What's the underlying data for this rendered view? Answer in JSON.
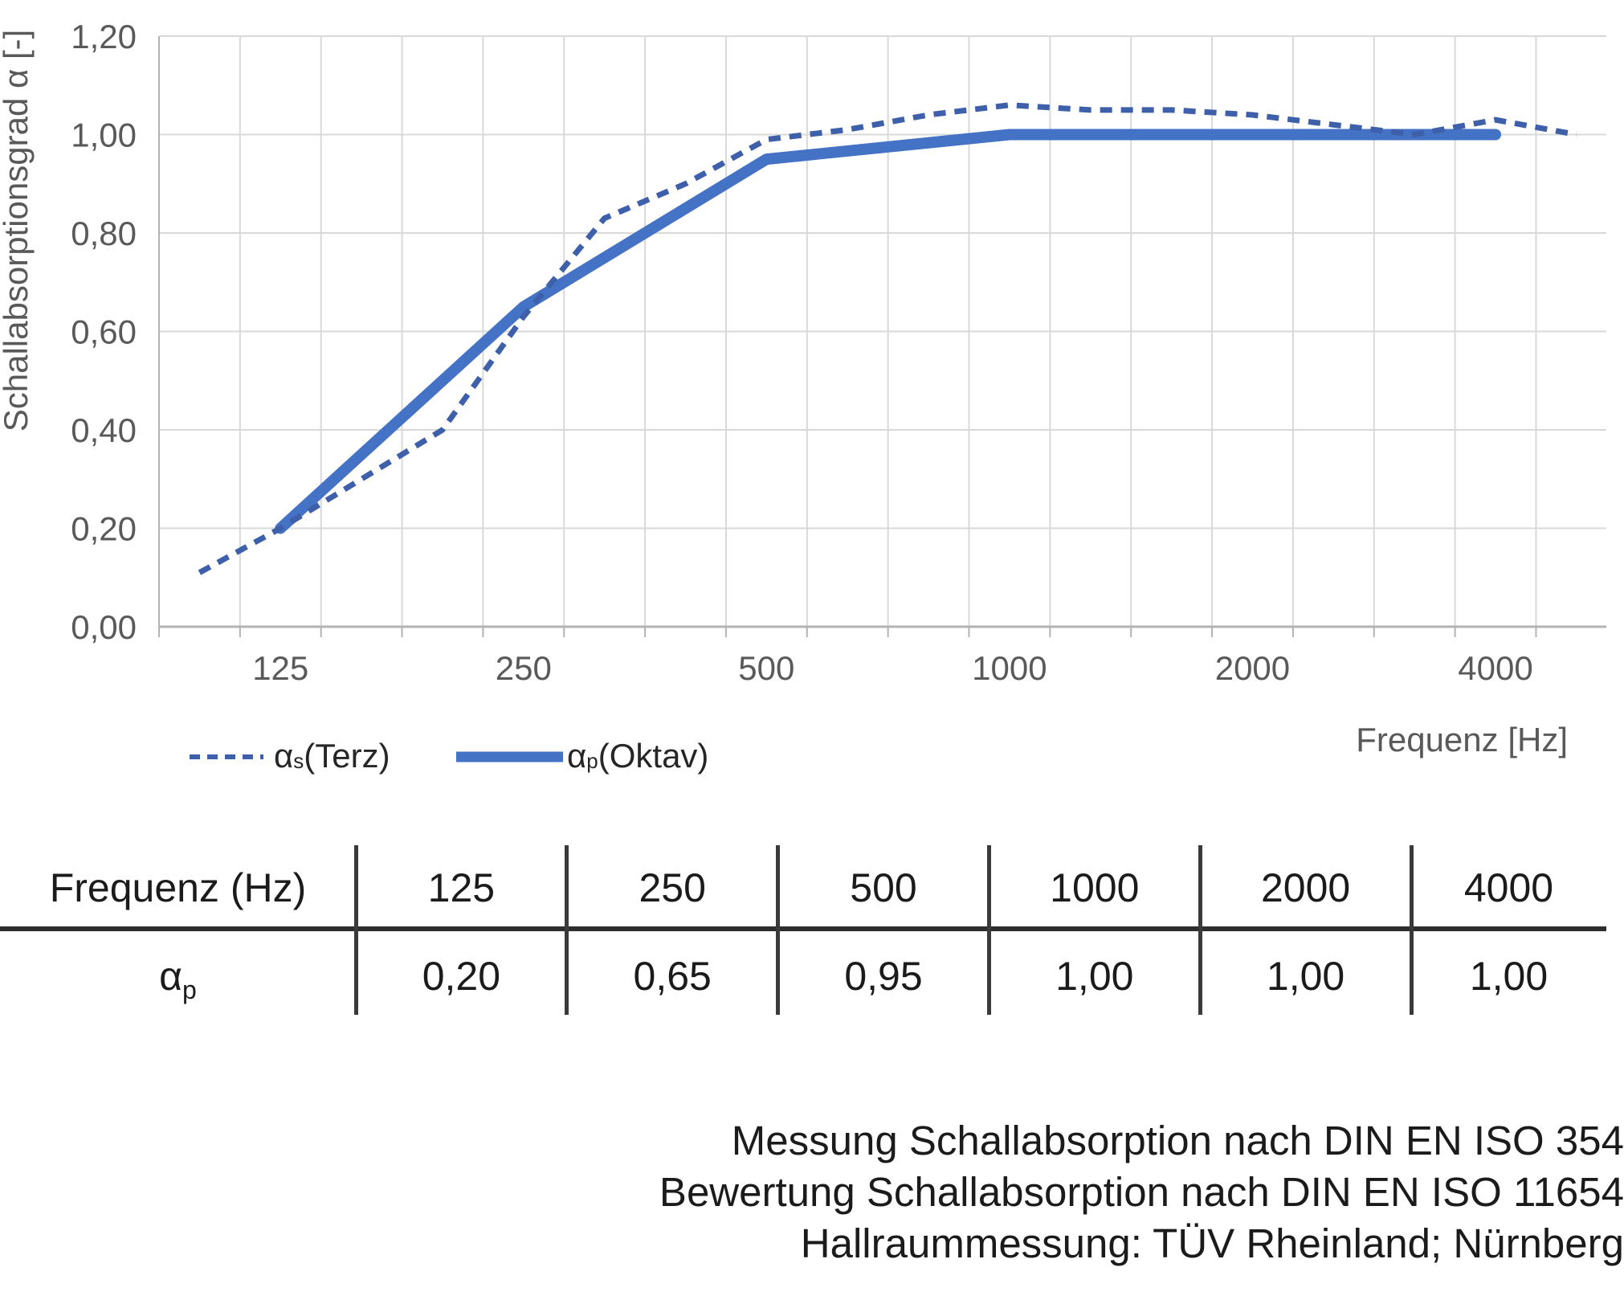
{
  "chart_data": {
    "type": "line",
    "title": "",
    "ylabel": "Schallabsorptionsgrad α [-]",
    "xlabel": "Frequenz [Hz]",
    "ylim": [
      0,
      1.2
    ],
    "grid": true,
    "bands": [
      100,
      125,
      160,
      200,
      250,
      315,
      400,
      500,
      630,
      800,
      1000,
      1250,
      1600,
      2000,
      2500,
      3150,
      4000,
      5000
    ],
    "x_tick_bands": [
      125,
      250,
      500,
      1000,
      2000,
      4000
    ],
    "x_tick_labels": [
      "125",
      "250",
      "500",
      "1000",
      "2000",
      "4000"
    ],
    "y_tick_labels": [
      "0,00",
      "0,20",
      "0,40",
      "0,60",
      "0,80",
      "1,00",
      "1,20"
    ],
    "grid_color": "#d9d9d9",
    "axis_color": "#b3b3b3",
    "tick_text_color": "#595959",
    "legend_position": "bottom-left",
    "series": [
      {
        "name": "αs (Terz)",
        "style": "dashed",
        "color": "#3e5fa9",
        "x": [
          100,
          125,
          160,
          200,
          250,
          315,
          400,
          500,
          630,
          800,
          1000,
          1250,
          1600,
          2000,
          2500,
          3150,
          4000,
          5000
        ],
        "values": [
          0.11,
          0.2,
          0.3,
          0.4,
          0.63,
          0.83,
          0.9,
          0.99,
          1.01,
          1.04,
          1.06,
          1.05,
          1.05,
          1.04,
          1.02,
          1.0,
          1.03,
          1.0
        ]
      },
      {
        "name": "αp (Oktav)",
        "style": "solid",
        "color": "#4472c4",
        "x": [
          125,
          250,
          500,
          1000,
          2000,
          4000
        ],
        "values": [
          0.2,
          0.65,
          0.95,
          1.0,
          1.0,
          1.0
        ]
      }
    ]
  },
  "legend": {
    "terz_symbol": "α",
    "terz_sub": "s",
    "terz_text": " (Terz)",
    "oktav_symbol": "α",
    "oktav_sub": "p",
    "oktav_text": " (Oktav)"
  },
  "table": {
    "header_label": "Frequenz (Hz)",
    "row_symbol": "α",
    "row_sub": "p",
    "columns": [
      "125",
      "250",
      "500",
      "1000",
      "2000",
      "4000"
    ],
    "values": [
      "0,20",
      "0,65",
      "0,95",
      "1,00",
      "1,00",
      "1,00"
    ]
  },
  "footer": {
    "lines": [
      "Messung Schallabsorption nach DIN EN ISO 354",
      "Bewertung Schallabsorption nach DIN EN ISO 11654",
      "Hallraummessung: TÜV Rheinland; Nürnberg"
    ]
  }
}
